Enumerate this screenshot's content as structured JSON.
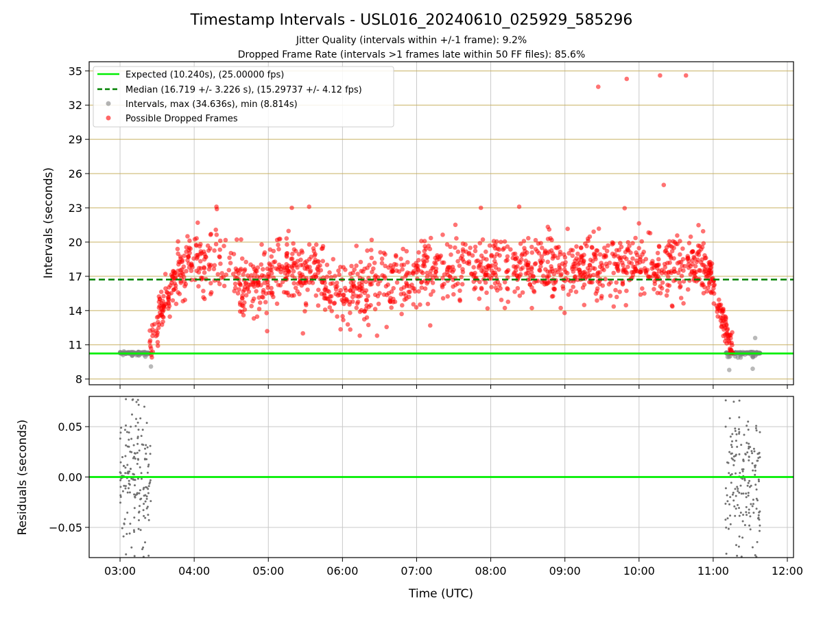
{
  "header": {
    "title": "Timestamp Intervals - USL016_20240610_025929_585296",
    "subtitle1": "Jitter Quality (intervals within +/-1 frame): 9.2%",
    "subtitle2": "Dropped Frame Rate (intervals >1 frames late within 50 FF files): 85.6%"
  },
  "colors": {
    "expected": "#00ee00",
    "median": "#008000",
    "intervals": "#808080",
    "dropped": "#ff0000",
    "hgrid": "#c8b060",
    "vgrid": "#c8c8c8"
  },
  "chart_data": [
    {
      "type": "scatter",
      "ylabel": "Intervals (seconds)",
      "ylim": [
        7.5,
        35.8
      ],
      "yticks": [
        "8",
        "11",
        "14",
        "17",
        "20",
        "23",
        "26",
        "29",
        "32",
        "35"
      ],
      "grid": true,
      "legend_position": "upper-left",
      "legend": [
        {
          "label": "Expected (10.240s), (25.00000 fps)",
          "kind": "line-solid",
          "color": "#00ee00"
        },
        {
          "label": "Median (16.719 +/- 3.226 s), (15.29737 +/- 4.12 fps)",
          "kind": "line-dashed",
          "color": "#008000"
        },
        {
          "label": "Intervals, max (34.636s), min (8.814s)",
          "kind": "dot",
          "color": "#808080"
        },
        {
          "label": "Possible Dropped Frames",
          "kind": "dot",
          "color": "#ff0000"
        }
      ],
      "reference_lines": {
        "expected": 10.24,
        "median": 16.719
      },
      "interval_max": 34.636,
      "interval_min": 8.814,
      "outliers": [
        {
          "t": "09:27",
          "y": 33.6
        },
        {
          "t": "09:50",
          "y": 34.3
        },
        {
          "t": "10:17",
          "y": 34.6
        },
        {
          "t": "10:38",
          "y": 34.6
        },
        {
          "t": "10:20",
          "y": 25.0
        },
        {
          "t": "04:18",
          "y": 23.1
        },
        {
          "t": "05:19",
          "y": 23.0
        },
        {
          "t": "05:33",
          "y": 23.1
        },
        {
          "t": "07:52",
          "y": 23.0
        },
        {
          "t": "08:23",
          "y": 23.1
        },
        {
          "t": "06:28",
          "y": 11.8
        },
        {
          "t": "06:14",
          "y": 11.8
        },
        {
          "t": "05:28",
          "y": 12.0
        },
        {
          "t": "04:59",
          "y": 12.2
        },
        {
          "t": "07:11",
          "y": 12.7
        },
        {
          "t": "11:34",
          "y": 11.6
        },
        {
          "t": "11:32",
          "y": 8.9
        },
        {
          "t": "11:13",
          "y": 8.8
        },
        {
          "t": "03:25",
          "y": 9.1
        }
      ]
    },
    {
      "type": "scatter",
      "xlabel": "Time (UTC)",
      "ylabel": "Residuals (seconds)",
      "ylim": [
        -0.08,
        0.08
      ],
      "yticks": [
        "−0.05",
        "0.00",
        "0.05"
      ],
      "xlim": [
        "02:35",
        "12:05"
      ],
      "xticks": [
        "03:00",
        "04:00",
        "05:00",
        "06:00",
        "07:00",
        "08:00",
        "09:00",
        "10:00",
        "11:00",
        "12:00"
      ],
      "grid": true,
      "reference_line": 0.0,
      "residual_clusters": [
        {
          "t_start": "03:00",
          "t_end": "03:25",
          "y_min": -0.08,
          "y_max": 0.078
        },
        {
          "t_start": "11:10",
          "t_end": "11:38",
          "y_min": -0.08,
          "y_max": 0.078
        }
      ]
    }
  ]
}
